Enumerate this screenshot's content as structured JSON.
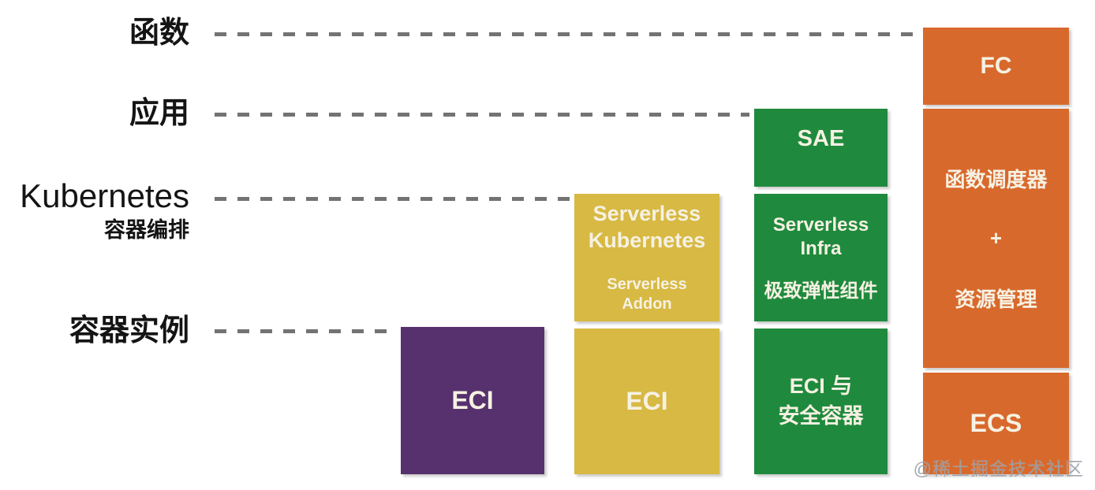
{
  "colors": {
    "purple": "#56316e",
    "yellow": "#d7b943",
    "green": "#1f8a3d",
    "orange": "#d8692c",
    "dash": "#737373",
    "box_text": "#f6f1e3",
    "label_text": "#141414",
    "watermark": "#9aa0a7"
  },
  "rows": [
    {
      "label": "函数"
    },
    {
      "label": "应用"
    },
    {
      "label": "Kubernetes",
      "sublabel": "容器编排"
    },
    {
      "label": "容器实例"
    }
  ],
  "boxes": {
    "eci_purple": {
      "label": "ECI"
    },
    "serverless_kubernetes": {
      "line1": "Serverless",
      "line2": "Kubernetes",
      "addon_line1": "Serverless",
      "addon_line2": "Addon"
    },
    "eci_yellow": {
      "label": "ECI"
    },
    "sae": {
      "label": "SAE"
    },
    "serverless_infra": {
      "line1": "Serverless",
      "line2": "Infra",
      "subtitle": "极致弹性组件"
    },
    "eci_secure": {
      "line1": "ECI 与",
      "line2": "安全容器"
    },
    "fc": {
      "label": "FC"
    },
    "scheduler": {
      "line1": "函数调度器",
      "line2": "+",
      "line3": "资源管理"
    },
    "ecs": {
      "label": "ECS"
    }
  },
  "watermark": {
    "text": "@稀土掘金技术社区"
  }
}
